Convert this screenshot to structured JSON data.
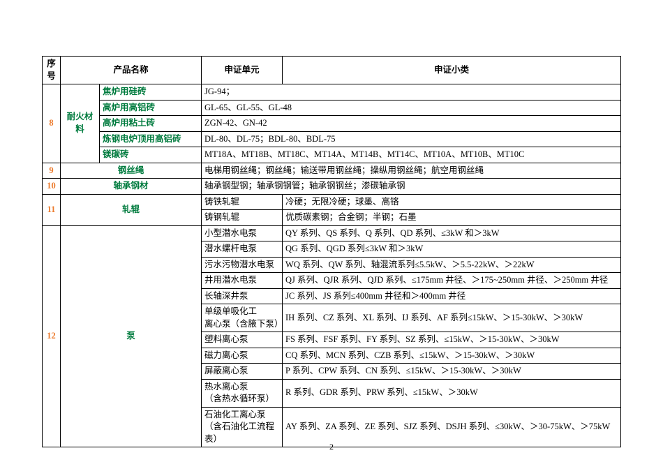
{
  "headers": {
    "seq": "序号",
    "prod": "产品名称",
    "unit": "申证单元",
    "sub": "申证小类"
  },
  "rows": {
    "r8": {
      "seq": "8",
      "cat": "耐火材料",
      "items": [
        {
          "prod": "焦炉用硅砖",
          "unit": "JG-94；"
        },
        {
          "prod": "高炉用高铝砖",
          "unit": "GL-65、GL-55、GL-48"
        },
        {
          "prod": "高炉用粘土砖",
          "unit": "ZGN-42、GN-42"
        },
        {
          "prod": "炼钢电炉顶用高铝砖",
          "unit": "DL-80、DL-75；BDL-80、BDL-75"
        },
        {
          "prod": "镁碳砖",
          "unit": "MT18A、MT18B、MT18C、MT14A、MT14B、MT14C、MT10A、MT10B、MT10C"
        }
      ]
    },
    "r9": {
      "seq": "9",
      "prod": "钢丝绳",
      "unit": "电梯用钢丝绳；钢丝绳；输送带用钢丝绳；操纵用钢丝绳；航空用钢丝绳"
    },
    "r10": {
      "seq": "10",
      "prod": "轴承钢材",
      "unit": "轴承钢型钢；轴承钢钢管；轴承钢钢丝；渗碳轴承钢"
    },
    "r11": {
      "seq": "11",
      "prod": "轧辊",
      "items": [
        {
          "unit": "铸铁轧辊",
          "sub": "冷硬；无限冷硬；球墨、高铬"
        },
        {
          "unit": "铸钢轧辊",
          "sub": "优质碳素钢；合金钢；半钢；石墨"
        }
      ]
    },
    "r12": {
      "seq": "12",
      "prod": "泵",
      "items": [
        {
          "unit": "小型潜水电泵",
          "sub": "QY 系列、QS 系列、Q 系列、QD 系列、≤3kW 和＞3kW"
        },
        {
          "unit": "潜水螺杆电泵",
          "sub": "QG 系列、QGD 系列≤3kW 和＞3kW"
        },
        {
          "unit": "污水污物潜水电泵",
          "sub": "WQ 系列、QW 系列、轴混流系列≤5.5kW、＞5.5-22kW、＞22kW"
        },
        {
          "unit": "井用潜水电泵",
          "sub": "QJ 系列、QJR 系列、QJD 系列、≤175mm 井径、＞175~250mm 井径、＞250mm 井径"
        },
        {
          "unit": "长轴深井泵",
          "sub": "JC 系列、JS 系列≤400mm 井径和＞400mm 井径"
        },
        {
          "unit": "单级单吸化工\n离心泵（含腋下泵）",
          "sub": "IH 系列、CZ 系列、XL 系列、IJ 系列、AF 系列≤15kW、＞15-30kW、＞30kW"
        },
        {
          "unit": "塑料离心泵",
          "sub": "FS 系列、FSF 系列、FY 系列、SZ 系列、≤15kW、＞15-30kW、＞30kW"
        },
        {
          "unit": "磁力离心泵",
          "sub": "CQ 系列、MCN 系列、CZB 系列、≤15kW、＞15-30kW、＞30kW"
        },
        {
          "unit": "屏蔽离心泵",
          "sub": "P 系列、CPW 系列、CN 系列、≤15kW、＞15-30kW、＞30kW"
        },
        {
          "unit": "热水离心泵\n（含热水循环泵）",
          "sub": "R 系列、GDR 系列、PRW 系列、≤15kW、＞30kW"
        },
        {
          "unit": "石油化工离心泵\n（含石油化工流程表）",
          "sub": "AY 系列、ZA 系列、ZE 系列、SJZ 系列、DSJH 系列、≤30kW、＞30-75kW、＞75kW"
        }
      ]
    }
  },
  "pagenum": "2",
  "colors": {
    "green": "#007b3e",
    "orange": "#ec7b2d",
    "border": "#000000",
    "bg": "#ffffff"
  },
  "font": {
    "body_size": 13,
    "cell_size": 12.5,
    "family": "SimSun"
  }
}
